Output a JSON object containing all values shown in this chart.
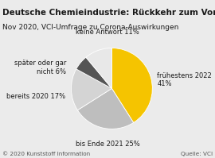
{
  "title": "Deutsche Chemieindustrie: Rückkehr zum Vorkrisenniveau",
  "subtitle": "Nov 2020, VCI-Umfrage zu Corona-Auswirkungen",
  "footer_left": "© 2020 Kunststoff Information",
  "footer_right": "Quelle: VCI",
  "slices": [
    41,
    25,
    17,
    6,
    11
  ],
  "colors": [
    "#F5C400",
    "#BEBEBE",
    "#D4D4D4",
    "#555555",
    "#E8E8E8"
  ],
  "startangle": 90,
  "title_bg": "#F5C400",
  "title_color": "#1a1a1a",
  "title_fontsize": 7.5,
  "subtitle_fontsize": 6.5,
  "label_fontsize": 6.0,
  "footer_fontsize": 5.2,
  "bg_color": "#EBEBEB"
}
